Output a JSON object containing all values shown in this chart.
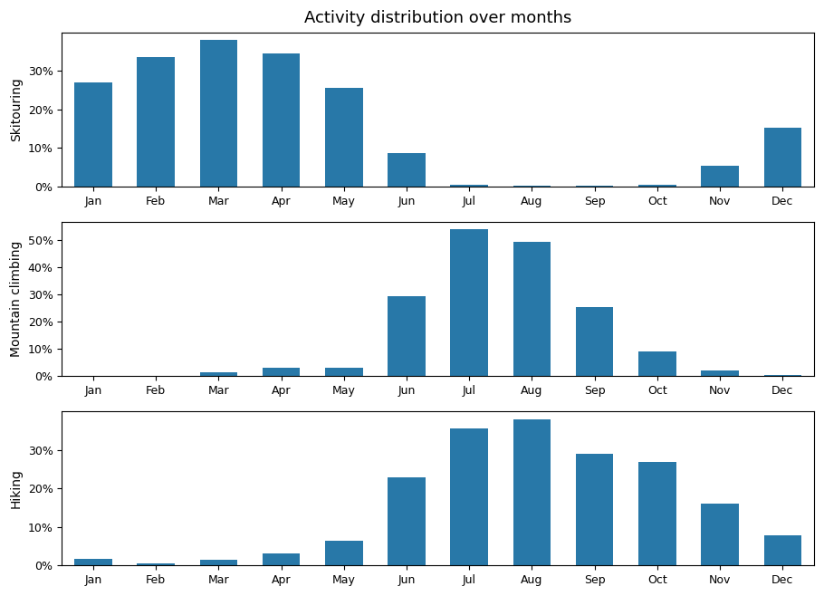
{
  "title": "Activity distribution over months",
  "months": [
    "Jan",
    "Feb",
    "Mar",
    "Apr",
    "May",
    "Jun",
    "Jul",
    "Aug",
    "Sep",
    "Oct",
    "Nov",
    "Dec"
  ],
  "skitouring": [
    0.27,
    0.335,
    0.38,
    0.345,
    0.255,
    0.088,
    0.005,
    0.002,
    0.002,
    0.005,
    0.055,
    0.152
  ],
  "mountain_climbing": [
    0.0,
    0.0,
    0.013,
    0.03,
    0.03,
    0.295,
    0.54,
    0.495,
    0.255,
    0.09,
    0.02,
    0.005
  ],
  "hiking": [
    0.018,
    0.005,
    0.015,
    0.03,
    0.065,
    0.228,
    0.355,
    0.38,
    0.29,
    0.268,
    0.16,
    0.078
  ],
  "bar_color": "#2878a8",
  "ylabel_skitouring": "Skitouring",
  "ylabel_mountain_climbing": "Mountain climbing",
  "ylabel_hiking": "Hiking",
  "title_fontsize": 13,
  "tick_fontsize": 9,
  "ylabel_fontsize": 10
}
